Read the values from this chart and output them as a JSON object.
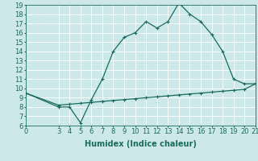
{
  "xlabel": "Humidex (Indice chaleur)",
  "bg_color": "#cce8e8",
  "line_color": "#1a6b5e",
  "grid_color": "#ffffff",
  "xlim": [
    0,
    21
  ],
  "ylim": [
    6,
    19
  ],
  "xticks": [
    0,
    3,
    4,
    5,
    6,
    7,
    8,
    9,
    10,
    11,
    12,
    13,
    14,
    15,
    16,
    17,
    18,
    19,
    20,
    21
  ],
  "yticks": [
    6,
    7,
    8,
    9,
    10,
    11,
    12,
    13,
    14,
    15,
    16,
    17,
    18,
    19
  ],
  "curve1_x": [
    0,
    3,
    4,
    5,
    6,
    7,
    8,
    9,
    10,
    11,
    12,
    13,
    14,
    15,
    16,
    17,
    18,
    19,
    20,
    21
  ],
  "curve1_y": [
    9.5,
    8.0,
    8.0,
    6.3,
    8.8,
    11.0,
    14.0,
    15.5,
    16.0,
    17.2,
    16.5,
    17.2,
    19.2,
    18.0,
    17.2,
    15.8,
    14.0,
    11.0,
    10.5,
    10.5
  ],
  "curve2_x": [
    0,
    3,
    4,
    5,
    6,
    7,
    8,
    9,
    10,
    11,
    12,
    13,
    14,
    15,
    16,
    17,
    18,
    19,
    20,
    21
  ],
  "curve2_y": [
    9.5,
    8.2,
    8.3,
    8.4,
    8.5,
    8.6,
    8.7,
    8.8,
    8.9,
    9.0,
    9.1,
    9.2,
    9.3,
    9.4,
    9.5,
    9.6,
    9.7,
    9.8,
    9.9,
    10.5
  ],
  "markersize": 3,
  "linewidth": 0.9,
  "fontsize_label": 7,
  "fontsize_tick": 6
}
